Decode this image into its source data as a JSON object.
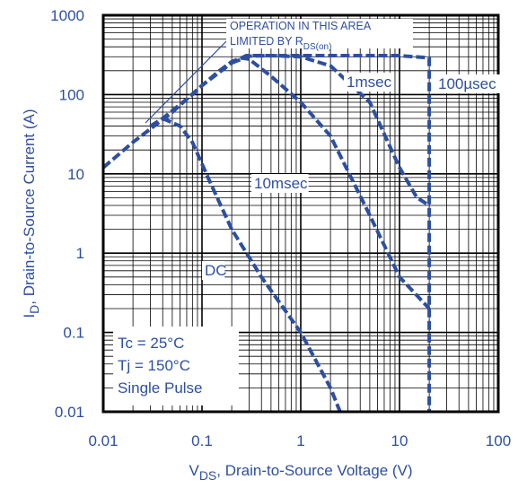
{
  "chart_data": {
    "type": "line",
    "x_scale": "log",
    "y_scale": "log",
    "xlim": [
      0.01,
      100
    ],
    "ylim": [
      0.01,
      1000
    ],
    "xticks": [
      "0.01",
      "0.1",
      "1",
      "10",
      "100"
    ],
    "yticks": [
      "0.01",
      "0.1",
      "1",
      "10",
      "100",
      "1000"
    ],
    "xlabel": {
      "main": "V",
      "sub": "DS",
      "rest": ", Drain-to-Source Voltage (V)"
    },
    "ylabel": {
      "main": "I",
      "sub": "D",
      "rest": ", Drain-to-Source Current (A)"
    },
    "grid": true,
    "annotation": {
      "line1": "OPERATION IN THIS AREA",
      "line2_main": "LIMITED BY R",
      "line2_sub": "DS(on)"
    },
    "conditions": [
      "Tc = 25°C",
      "Tj = 150°C",
      "Single Pulse"
    ],
    "colors": {
      "curve": "#2d4fa0",
      "text": "#2d4fa0",
      "grid": "#000000"
    },
    "series": [
      {
        "name": "100µsec",
        "x": [
          0.01,
          0.02,
          0.05,
          0.1,
          0.2,
          0.28,
          1,
          5,
          10,
          14,
          20,
          20,
          20
        ],
        "y": [
          12,
          25,
          60,
          130,
          250,
          310,
          310,
          310,
          310,
          300,
          290,
          5,
          0.01
        ]
      },
      {
        "name": "1msec",
        "x": [
          0.2,
          0.3,
          0.5,
          1,
          2,
          5,
          10,
          15,
          20
        ],
        "y": [
          250,
          305,
          310,
          300,
          230,
          80,
          12,
          5,
          4
        ]
      },
      {
        "name": "10msec",
        "x": [
          0.03,
          0.04,
          0.06,
          0.08,
          0.1,
          0.15,
          0.2,
          0.25,
          0.3,
          0.5,
          1,
          2,
          5,
          10,
          20
        ],
        "y": [
          40,
          50,
          75,
          100,
          130,
          200,
          260,
          290,
          280,
          170,
          80,
          30,
          3,
          0.5,
          0.2
        ]
      },
      {
        "name": "DC",
        "x": [
          0.04,
          0.06,
          0.08,
          0.12,
          0.2,
          0.4,
          1,
          2,
          2.5
        ],
        "y": [
          50,
          40,
          25,
          8,
          2,
          0.5,
          0.1,
          0.02,
          0.01
        ]
      }
    ]
  }
}
